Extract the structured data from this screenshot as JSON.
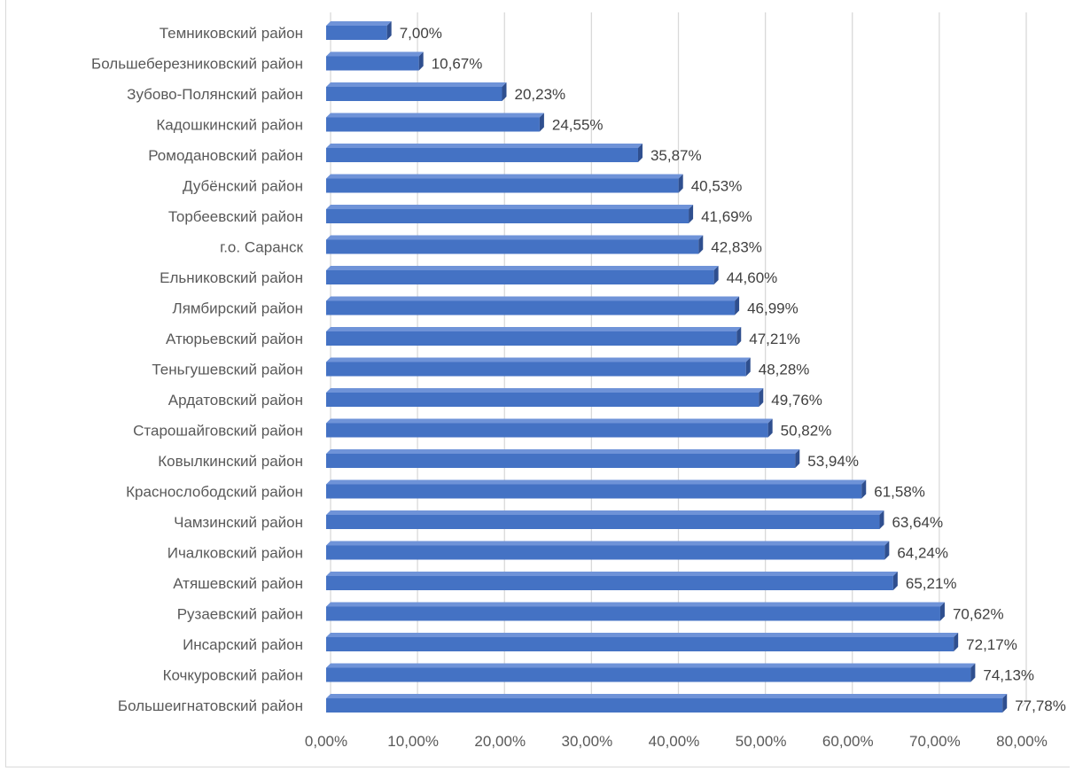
{
  "chart_data": {
    "type": "bar",
    "orientation": "horizontal",
    "categories": [
      "Темниковский район",
      "Большеберезниковский район",
      "Зубово-Полянский район",
      "Кадошкинский район",
      "Ромодановский район",
      "Дубёнский район",
      "Торбеевский район",
      "г.о. Саранск",
      "Ельниковский район",
      "Лямбирский район",
      "Атюрьевский район",
      "Теньгушевский район",
      "Ардатовский район",
      "Старошайговский район",
      "Ковылкинский район",
      "Краснослободский район",
      "Чамзинский район",
      "Ичалковский район",
      "Атяшевский район",
      "Рузаевский район",
      "Инсарский район",
      "Кочкуровский район",
      "Большеигнатовский район"
    ],
    "values": [
      7.0,
      10.67,
      20.23,
      24.55,
      35.87,
      40.53,
      41.69,
      42.83,
      44.6,
      46.99,
      47.21,
      48.28,
      49.76,
      50.82,
      53.94,
      61.58,
      63.64,
      64.24,
      65.21,
      70.62,
      72.17,
      74.13,
      77.78
    ],
    "data_labels": [
      "7,00%",
      "10,67%",
      "20,23%",
      "24,55%",
      "35,87%",
      "40,53%",
      "41,69%",
      "42,83%",
      "44,60%",
      "46,99%",
      "47,21%",
      "48,28%",
      "49,76%",
      "50,82%",
      "53,94%",
      "61,58%",
      "63,64%",
      "64,24%",
      "65,21%",
      "70,62%",
      "72,17%",
      "74,13%",
      "77,78%"
    ],
    "xlim": [
      0,
      80
    ],
    "ticks": [
      0,
      10,
      20,
      30,
      40,
      50,
      60,
      70,
      80
    ],
    "tick_labels": [
      "0,00%",
      "10,00%",
      "20,00%",
      "30,00%",
      "40,00%",
      "50,00%",
      "60,00%",
      "70,00%",
      "80,00%"
    ],
    "title": "",
    "xlabel": "",
    "ylabel": "",
    "grid": true,
    "legend": "none",
    "colors": {
      "bar": "#4472c4",
      "bar_top": "#6f93d8",
      "bar_side": "#2f4f8f",
      "grid": "#d9d9d9",
      "text": "#595959"
    }
  }
}
